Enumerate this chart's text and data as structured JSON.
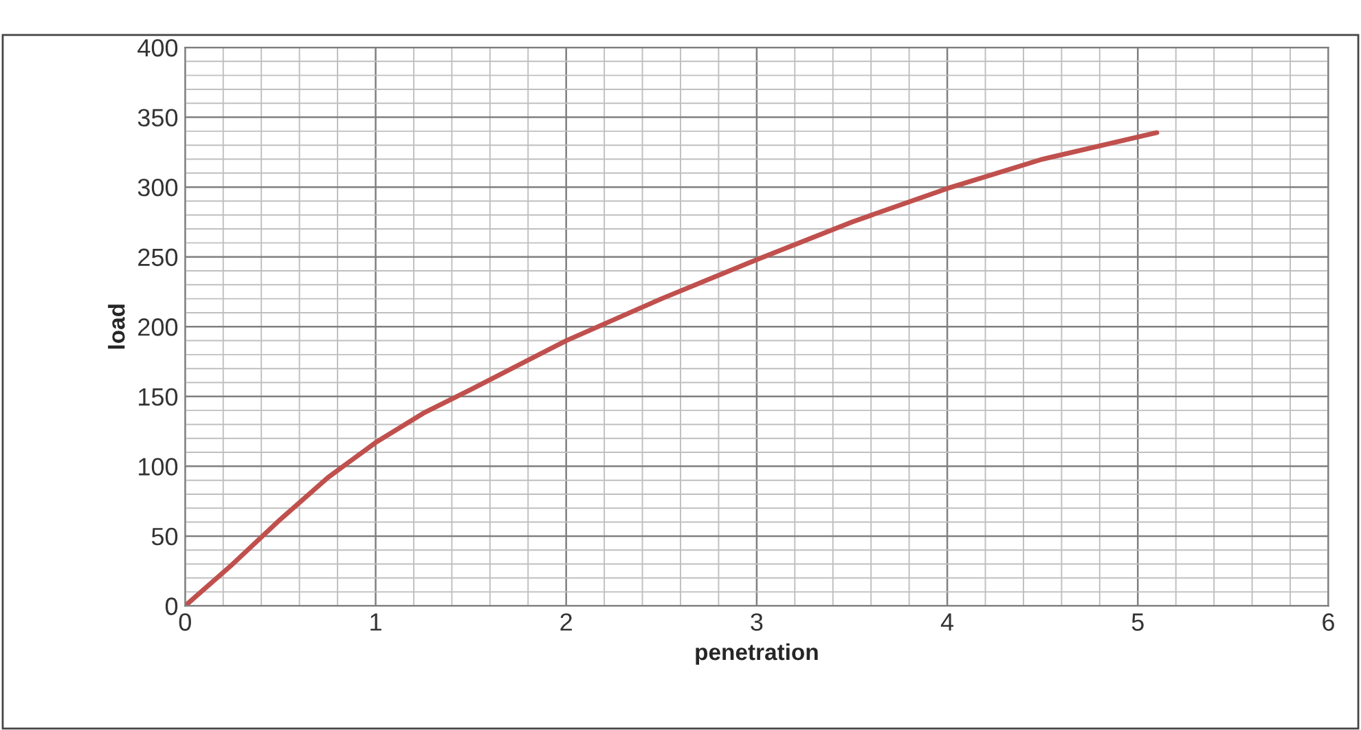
{
  "chart_data": {
    "type": "line",
    "xlabel": "penetration",
    "ylabel": "load",
    "x": [
      0,
      0.25,
      0.5,
      0.75,
      1,
      1.25,
      1.5,
      2,
      2.5,
      3,
      3.5,
      4,
      4.5,
      5.1
    ],
    "series": [
      {
        "color": "#c0504d",
        "values": [
          0,
          30,
          62,
          92,
          117,
          138,
          155,
          190,
          220,
          248,
          275,
          299,
          320,
          339
        ]
      }
    ],
    "xlim": [
      0,
      6
    ],
    "xticks": [
      0,
      1,
      2,
      3,
      4,
      5,
      6
    ],
    "ylim": [
      0,
      400
    ],
    "yticks": [
      0,
      50,
      100,
      150,
      200,
      250,
      300,
      350,
      400
    ],
    "grid": true,
    "legend": false,
    "marker": "none",
    "line_style": "solid"
  }
}
